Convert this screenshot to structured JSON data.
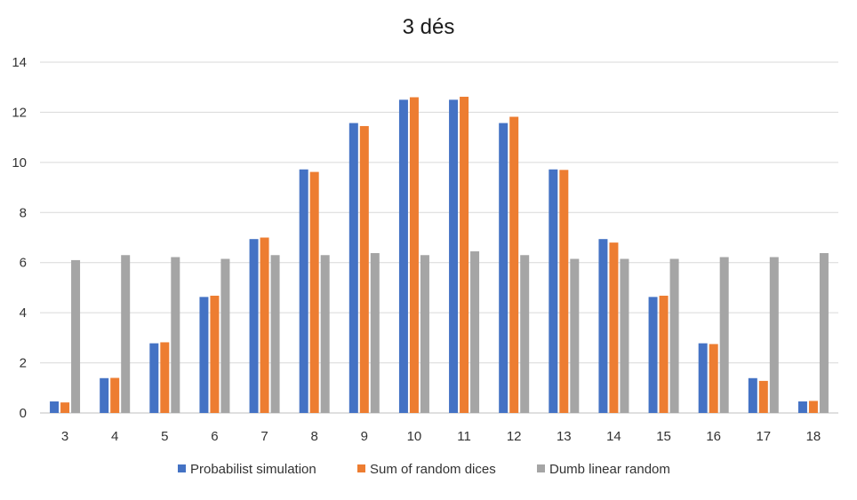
{
  "chart_data": {
    "type": "bar",
    "title": "3 dés",
    "xlabel": "",
    "ylabel": "",
    "categories": [
      "3",
      "4",
      "5",
      "6",
      "7",
      "8",
      "9",
      "10",
      "11",
      "12",
      "13",
      "14",
      "15",
      "16",
      "17",
      "18"
    ],
    "ylim": [
      0,
      14
    ],
    "yticks": [
      0,
      2,
      4,
      6,
      8,
      10,
      12,
      14
    ],
    "grid": true,
    "legend_position": "bottom",
    "series": [
      {
        "name": "Probabilist simulation",
        "color": "#4472C4",
        "values": [
          0.46,
          1.39,
          2.78,
          4.63,
          6.94,
          9.72,
          11.57,
          12.5,
          12.5,
          11.57,
          9.72,
          6.94,
          4.63,
          2.78,
          1.39,
          0.46
        ]
      },
      {
        "name": "Sum of random dices",
        "color": "#ED7D31",
        "values": [
          0.42,
          1.4,
          2.82,
          4.68,
          7.0,
          9.62,
          11.45,
          12.6,
          12.62,
          11.82,
          9.7,
          6.8,
          4.68,
          2.75,
          1.28,
          0.48
        ]
      },
      {
        "name": "Dumb linear random",
        "color": "#A5A5A5",
        "values": [
          6.1,
          6.3,
          6.22,
          6.15,
          6.3,
          6.3,
          6.38,
          6.3,
          6.45,
          6.3,
          6.15,
          6.15,
          6.15,
          6.22,
          6.22,
          6.38
        ]
      }
    ]
  }
}
